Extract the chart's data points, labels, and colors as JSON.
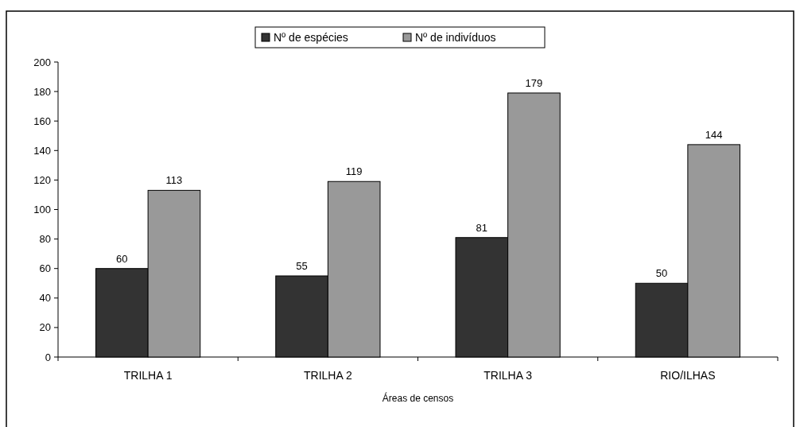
{
  "chart_data": {
    "type": "bar",
    "xlabel": "Áreas de censos",
    "categories": [
      "TRILHA 1",
      "TRILHA 2",
      "TRILHA 3",
      "RIO/ILHAS"
    ],
    "series": [
      {
        "name": "Nº de espécies",
        "color": "#333333",
        "values": [
          60,
          55,
          81,
          50
        ]
      },
      {
        "name": "Nº de indivíduos",
        "color": "#999999",
        "values": [
          113,
          119,
          179,
          144
        ]
      }
    ],
    "ylim": [
      0,
      200
    ],
    "yticks": [
      0,
      20,
      40,
      60,
      80,
      100,
      120,
      140,
      160,
      180,
      200
    ],
    "data_labels": true,
    "legend": "top",
    "grid": false
  }
}
